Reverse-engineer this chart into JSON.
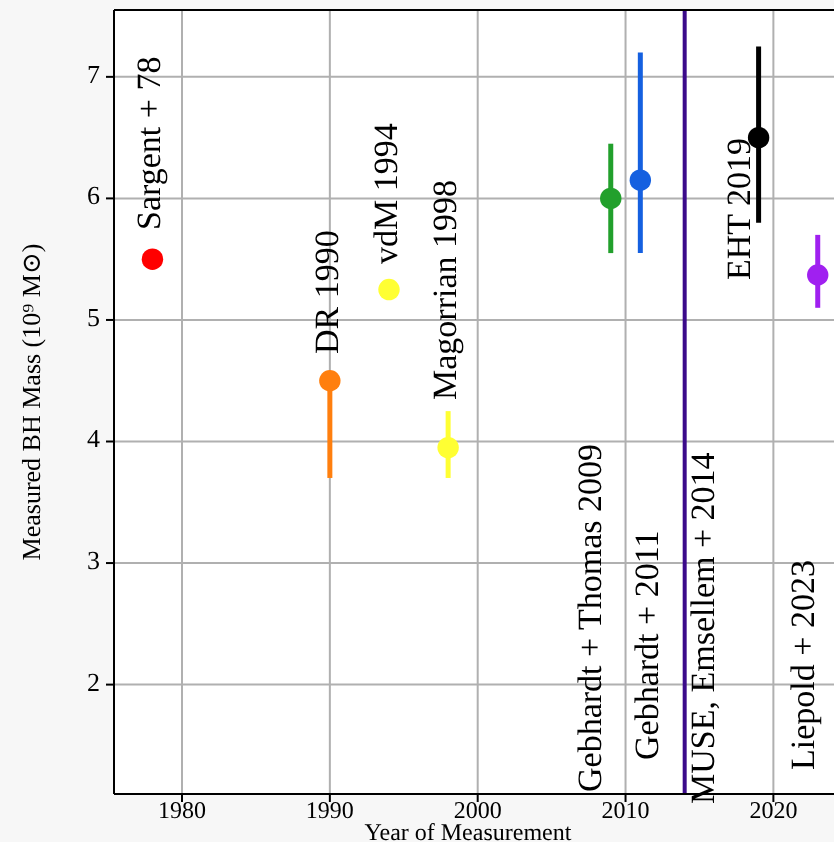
{
  "chart_data": {
    "type": "scatter",
    "xlabel": "Year of Measurement",
    "ylabel": "Measured BH Mass (10⁹ M⊙)",
    "xlim": [
      1975.4,
      2024.1
    ],
    "ylim": [
      1.1,
      7.55
    ],
    "xticks": [
      1980,
      1990,
      2000,
      2010,
      2020
    ],
    "yticks": [
      2,
      3,
      4,
      5,
      6,
      7
    ],
    "grid": true,
    "marker": "circle",
    "series": [
      {
        "color": "#ff0000",
        "x": [
          1978
        ],
        "values": [
          5.5
        ]
      },
      {
        "color": "#ff7f0e",
        "x": [
          1990
        ],
        "values": [
          4.5
        ],
        "errors": [
          [
            3.7,
            4.5
          ]
        ]
      },
      {
        "color": "#ffff33",
        "x": [
          1994
        ],
        "values": [
          5.25
        ]
      },
      {
        "color": "#ffff33",
        "x": [
          1998
        ],
        "values": [
          3.95
        ],
        "errors": [
          [
            3.7,
            4.25
          ]
        ]
      },
      {
        "color": "#22a02c",
        "x": [
          2009
        ],
        "values": [
          6.0
        ],
        "errors": [
          [
            5.55,
            6.45
          ]
        ]
      },
      {
        "color": "#1560e0",
        "x": [
          2011
        ],
        "values": [
          6.15
        ],
        "errors": [
          [
            5.55,
            7.2
          ]
        ]
      },
      {
        "color": "#000000",
        "x": [
          2019
        ],
        "values": [
          6.5
        ],
        "errors": [
          [
            5.8,
            7.25
          ]
        ]
      },
      {
        "color": "#a020f0",
        "x": [
          2023
        ],
        "values": [
          5.37
        ],
        "errors": [
          [
            5.1,
            5.7
          ]
        ]
      }
    ],
    "ref_lines": [
      {
        "axis": "x",
        "value": 2014,
        "label": "MUSE, Emsellem + 2014",
        "color": "#3b0a8a"
      }
    ],
    "annotations": [
      "Sargent + 78",
      "DR 1990",
      "vdM 1994",
      "Magorrian 1998",
      "Gebhardt + Thomas 2009",
      "Gebhardt + 2011",
      "EHT 2019",
      "Liepold + 2023"
    ]
  }
}
